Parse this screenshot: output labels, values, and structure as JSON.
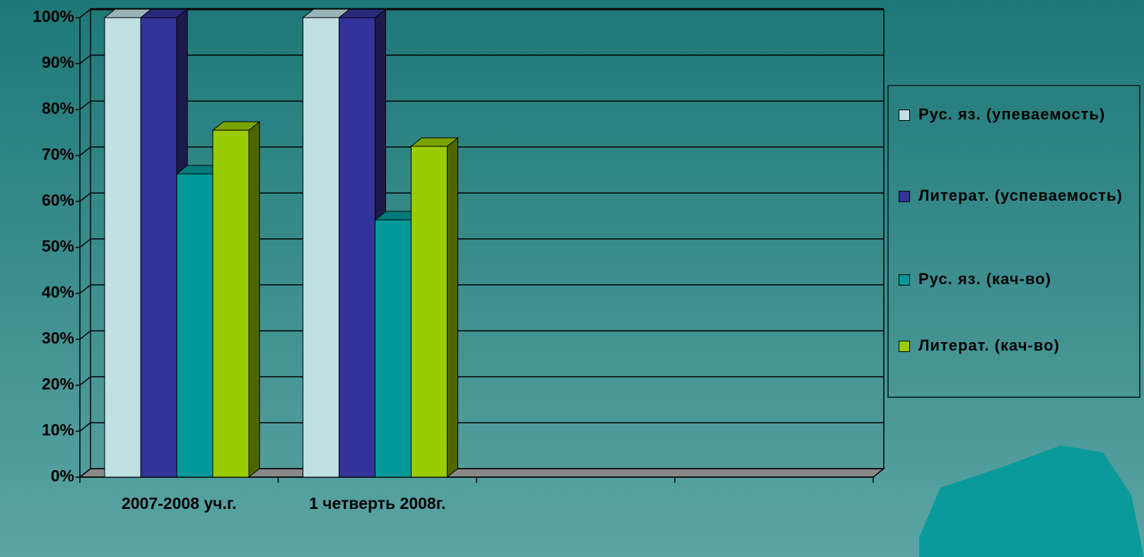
{
  "chart_data": {
    "type": "bar3d",
    "categories": [
      "2007-2008 уч.г.",
      "1 четверть 2008г.",
      null,
      null
    ],
    "series": [
      {
        "name": "Рус. яз. (упеваемость)",
        "color": "#c0e0e4",
        "values": [
          100,
          100,
          null,
          null
        ]
      },
      {
        "name": "Литерат. (успеваемость)",
        "color": "#333399",
        "values": [
          100,
          100,
          null,
          null
        ]
      },
      {
        "name": "Рус. яз. (кач-во)",
        "color": "#009999",
        "values": [
          66,
          56,
          null,
          null
        ]
      },
      {
        "name": "Литерат. (кач-во)",
        "color": "#99cc00",
        "values": [
          75.5,
          72,
          null,
          null
        ]
      }
    ],
    "ylim": [
      0,
      100
    ],
    "yticks": [
      {
        "value": 0,
        "label": "0%"
      },
      {
        "value": 10,
        "label": "10%"
      },
      {
        "value": 20,
        "label": "20%"
      },
      {
        "value": 30,
        "label": "30%"
      },
      {
        "value": 40,
        "label": "40%"
      },
      {
        "value": 50,
        "label": "50%"
      },
      {
        "value": 60,
        "label": "60%"
      },
      {
        "value": 70,
        "label": "70%"
      },
      {
        "value": 80,
        "label": "80%"
      },
      {
        "value": 90,
        "label": "90%"
      },
      {
        "value": 100,
        "label": "100%"
      }
    ],
    "grid": true,
    "legend": "right"
  }
}
